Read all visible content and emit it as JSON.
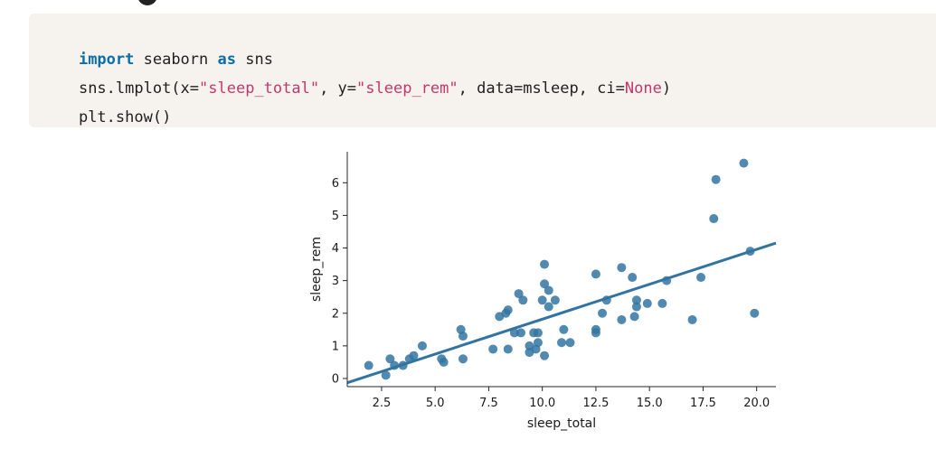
{
  "code": {
    "line1": {
      "kw1": "import",
      "t1": " seaborn ",
      "kw2": "as",
      "t2": " sns"
    },
    "line2": {
      "t1": "sns.lmplot(x=",
      "s1": "\"sleep_total\"",
      "t2": ", y=",
      "s2": "\"sleep_rem\"",
      "t3": ", data=msleep, ci=",
      "n1": "None",
      "t4": ")"
    },
    "line3": {
      "t1": "plt.show()"
    }
  },
  "colors": {
    "point": "#3274a1",
    "line": "#3274a1",
    "code_bg": "#f6f3ee",
    "keyword": "#0b6ea8",
    "string": "#c2386e"
  },
  "chart_data": {
    "type": "scatter",
    "xlabel": "sleep_total",
    "ylabel": "sleep_rem",
    "xlim": [
      0.9,
      20.9
    ],
    "ylim": [
      -0.25,
      6.95
    ],
    "xticks": [
      2.5,
      5.0,
      7.5,
      10.0,
      12.5,
      15.0,
      17.5,
      20.0
    ],
    "xtick_labels": [
      "2.5",
      "5.0",
      "7.5",
      "10.0",
      "12.5",
      "15.0",
      "17.5",
      "20.0"
    ],
    "yticks": [
      0,
      1,
      2,
      3,
      4,
      5,
      6
    ],
    "ytick_labels": [
      "0",
      "1",
      "2",
      "3",
      "4",
      "5",
      "6"
    ],
    "grid": false,
    "regression": {
      "x": [
        0.9,
        20.9
      ],
      "y": [
        -0.13,
        4.15
      ]
    },
    "x": [
      1.9,
      2.7,
      2.9,
      3.1,
      3.5,
      3.8,
      4.0,
      4.4,
      5.3,
      5.4,
      6.2,
      6.3,
      6.3,
      7.7,
      8.0,
      8.3,
      8.4,
      8.4,
      8.7,
      8.9,
      9.0,
      9.1,
      9.4,
      9.4,
      9.6,
      9.7,
      9.8,
      9.8,
      10.0,
      10.1,
      10.1,
      10.1,
      10.3,
      10.3,
      10.6,
      10.9,
      11.0,
      11.3,
      12.5,
      12.5,
      12.5,
      12.8,
      13.0,
      13.7,
      13.7,
      14.2,
      14.3,
      14.4,
      14.4,
      14.9,
      15.6,
      15.8,
      17.0,
      17.4,
      18.0,
      18.1,
      19.4,
      19.7,
      19.9
    ],
    "y": [
      0.4,
      0.1,
      0.6,
      0.4,
      0.4,
      0.6,
      0.7,
      1.0,
      0.6,
      0.5,
      1.5,
      1.3,
      0.6,
      0.9,
      1.9,
      2.0,
      2.1,
      0.9,
      1.4,
      2.6,
      1.4,
      2.4,
      1.0,
      0.8,
      1.4,
      0.9,
      1.4,
      1.1,
      2.4,
      3.5,
      2.9,
      0.7,
      2.7,
      2.2,
      2.4,
      1.1,
      1.5,
      1.1,
      3.2,
      1.5,
      1.4,
      2.0,
      2.4,
      3.4,
      1.8,
      3.1,
      1.9,
      2.4,
      2.2,
      2.3,
      2.3,
      3.0,
      1.8,
      3.1,
      4.9,
      6.1,
      6.6,
      3.9,
      2.0
    ]
  }
}
